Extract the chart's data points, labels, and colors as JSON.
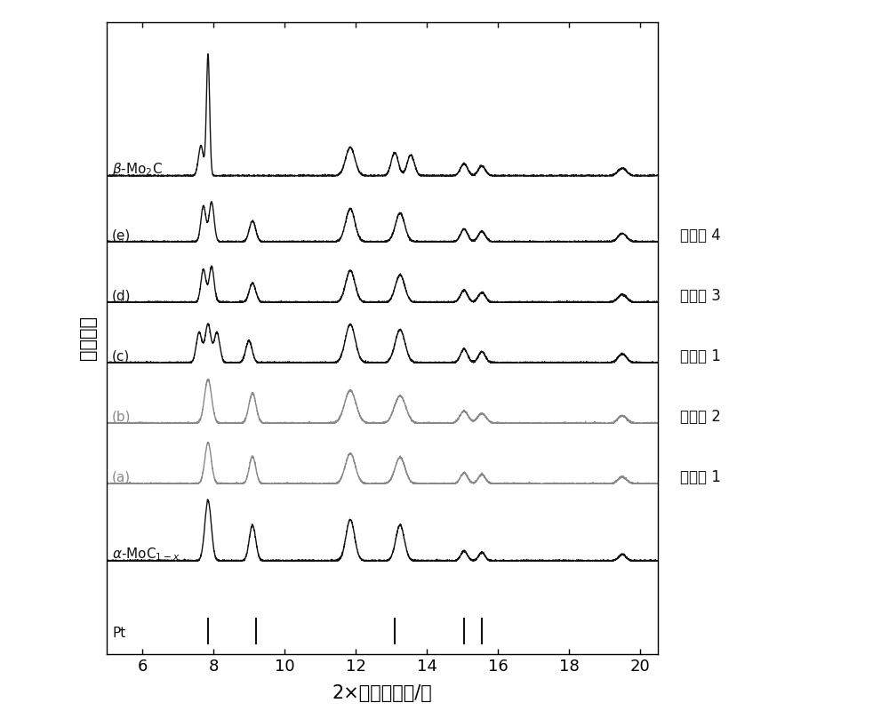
{
  "xlabel": "2×衍射角强度/角",
  "ylabel": "信号强度",
  "xlim": [
    5.0,
    20.5
  ],
  "xticks": [
    6,
    8,
    10,
    12,
    14,
    16,
    18,
    20
  ],
  "background_color": "#ffffff",
  "line_color_black": "#111111",
  "line_color_gray": "#888888",
  "pt_lines": [
    7.85,
    9.2,
    13.1,
    15.05,
    15.55
  ],
  "curve_offsets": [
    8.5,
    7.3,
    6.2,
    5.1,
    4.0,
    2.9,
    1.5,
    0.0
  ],
  "right_labels": [
    "实施例 4",
    "实施例 3",
    "对比例 1",
    "实施例 2",
    "实施例 1"
  ],
  "figsize": [
    10.0,
    8.18
  ],
  "dpi": 100
}
